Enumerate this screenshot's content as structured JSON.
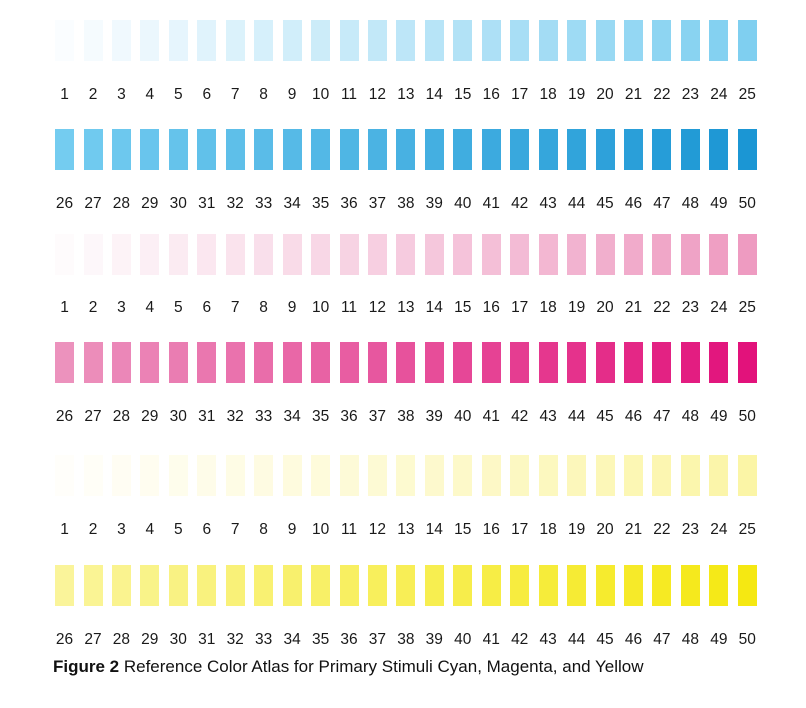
{
  "caption": {
    "figure_label": "Figure 2",
    "text": " Reference Color Atlas for Primary Stimuli Cyan, Magenta, and Yellow"
  },
  "rows": [
    {
      "name": "cyan-1-25",
      "numbers": [
        "1",
        "2",
        "3",
        "4",
        "5",
        "6",
        "7",
        "8",
        "9",
        "10",
        "11",
        "12",
        "13",
        "14",
        "15",
        "16",
        "17",
        "18",
        "19",
        "20",
        "21",
        "22",
        "23",
        "24",
        "25"
      ],
      "color_from": "#fafdff",
      "color_to": "#7fcff0"
    },
    {
      "name": "cyan-26-50",
      "numbers": [
        "26",
        "27",
        "28",
        "29",
        "30",
        "31",
        "32",
        "33",
        "34",
        "35",
        "36",
        "37",
        "38",
        "39",
        "40",
        "41",
        "42",
        "43",
        "44",
        "45",
        "46",
        "47",
        "48",
        "49",
        "50"
      ],
      "color_from": "#74ccf0",
      "color_to": "#1b96d4"
    },
    {
      "name": "magenta-1-25",
      "numbers": [
        "1",
        "2",
        "3",
        "4",
        "5",
        "6",
        "7",
        "8",
        "9",
        "10",
        "11",
        "12",
        "13",
        "14",
        "15",
        "16",
        "17",
        "18",
        "19",
        "20",
        "21",
        "22",
        "23",
        "24",
        "25"
      ],
      "color_from": "#fefbfc",
      "color_to": "#ee9bc1"
    },
    {
      "name": "magenta-26-50",
      "numbers": [
        "26",
        "27",
        "28",
        "29",
        "30",
        "31",
        "32",
        "33",
        "34",
        "35",
        "36",
        "37",
        "38",
        "39",
        "40",
        "41",
        "42",
        "43",
        "44",
        "45",
        "46",
        "47",
        "48",
        "49",
        "50"
      ],
      "color_from": "#ec92bd",
      "color_to": "#e2127b"
    },
    {
      "name": "yellow-1-25",
      "numbers": [
        "1",
        "2",
        "3",
        "4",
        "5",
        "6",
        "7",
        "8",
        "9",
        "10",
        "11",
        "12",
        "13",
        "14",
        "15",
        "16",
        "17",
        "18",
        "19",
        "20",
        "21",
        "22",
        "23",
        "24",
        "25"
      ],
      "color_from": "#fffefa",
      "color_to": "#fbf5a6"
    },
    {
      "name": "yellow-26-50",
      "numbers": [
        "26",
        "27",
        "28",
        "29",
        "30",
        "31",
        "32",
        "33",
        "34",
        "35",
        "36",
        "37",
        "38",
        "39",
        "40",
        "41",
        "42",
        "43",
        "44",
        "45",
        "46",
        "47",
        "48",
        "49",
        "50"
      ],
      "color_from": "#faf49a",
      "color_to": "#f5e812"
    }
  ]
}
